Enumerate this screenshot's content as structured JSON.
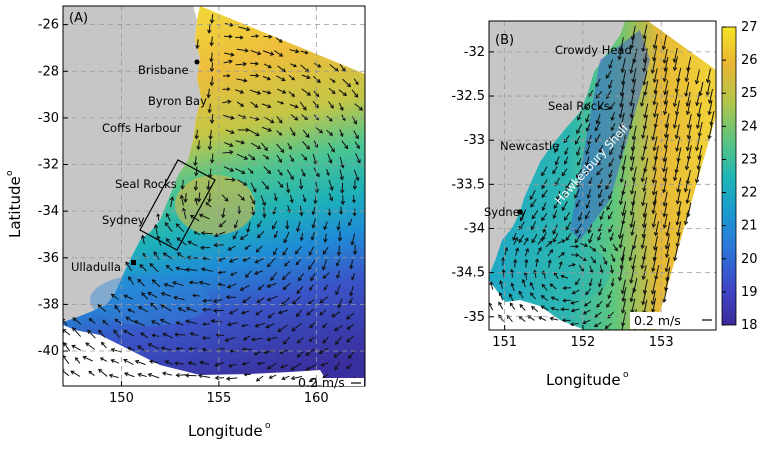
{
  "panels": {
    "a": {
      "label": "(A)",
      "xlabel": "Longitude",
      "ylabel": "Latitude",
      "deg": "o",
      "xticks": [
        "150",
        "155",
        "160"
      ],
      "yticks": [
        "-26",
        "-28",
        "-30",
        "-32",
        "-34",
        "-36",
        "-38",
        "-40"
      ],
      "places": [
        "Brisbane",
        "Byron Bay",
        "Coffs Harbour",
        "Seal Rocks",
        "Sydney",
        "Ulladulla"
      ],
      "scale": "0.2 m/s",
      "xlim": [
        147,
        162.5
      ],
      "ylim": [
        -41.5,
        -25.2
      ]
    },
    "b": {
      "label": "(B)",
      "xlabel": "Longitude",
      "deg": "o",
      "xticks": [
        "151",
        "152",
        "153"
      ],
      "yticks": [
        "-32",
        "-32.5",
        "-33",
        "-33.5",
        "-34",
        "-34.5",
        "-35"
      ],
      "places": [
        "Crowdy Head",
        "Seal Rocks",
        "Newcastle",
        "Hawkesbury Shelf",
        "Sydney"
      ],
      "scale": "0.2 m/s",
      "xlim": [
        150.8,
        153.7
      ],
      "ylim": [
        -35.15,
        -31.65
      ]
    }
  },
  "colorbar": {
    "ticks": [
      "27",
      "26",
      "25",
      "24",
      "23",
      "22",
      "21",
      "20",
      "19",
      "18"
    ],
    "range": [
      18,
      27
    ]
  },
  "colors": {
    "land": "#c6c6c6",
    "warm": "#f2d63a",
    "mid": "#2cb5b0",
    "cold": "#3c3aa8",
    "arrows": "#111111"
  }
}
